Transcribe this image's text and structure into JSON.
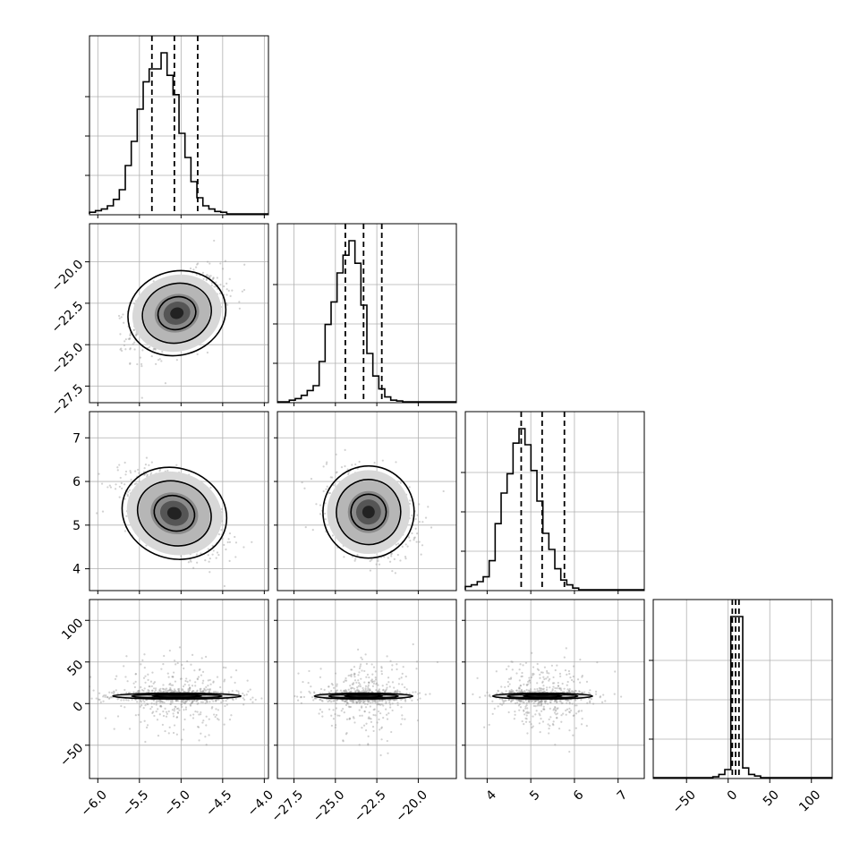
{
  "chart_data": {
    "type": "corner",
    "grid": true,
    "variables": [
      {
        "range": [
          -6.1,
          -3.95
        ],
        "ticks": [
          -6.0,
          -5.5,
          -5.0,
          -4.5,
          -4.0
        ],
        "tick_labels": [
          "−6.0",
          "−5.5",
          "−5.0",
          "−4.5",
          "−4.0"
        ],
        "quantiles": [
          -5.35,
          -5.08,
          -4.8
        ]
      },
      {
        "range": [
          -28.5,
          -17.7
        ],
        "ticks": [
          -27.5,
          -25.0,
          -22.5,
          -20.0
        ],
        "tick_labels": [
          "−27.5",
          "−25.0",
          "−22.5",
          "−20.0"
        ],
        "quantiles": [
          -24.4,
          -23.3,
          -22.2
        ]
      },
      {
        "range": [
          3.5,
          7.6
        ],
        "ticks": [
          4,
          5,
          6,
          7
        ],
        "tick_labels": [
          "4",
          "5",
          "6",
          "7"
        ],
        "quantiles": [
          4.78,
          5.26,
          5.77
        ]
      },
      {
        "range": [
          -90,
          125
        ],
        "ticks": [
          -50,
          0,
          50,
          100
        ],
        "tick_labels": [
          "−50",
          "0",
          "50",
          "100"
        ],
        "quantiles": [
          5,
          9,
          13
        ]
      }
    ],
    "marginals": [
      {
        "bin_start": -6.1,
        "bin_width": 0.0717,
        "counts": [
          0.01,
          0.02,
          0.03,
          0.05,
          0.09,
          0.15,
          0.3,
          0.45,
          0.65,
          0.82,
          0.9,
          0.9,
          1.0,
          0.86,
          0.74,
          0.5,
          0.35,
          0.2,
          0.1,
          0.05,
          0.03,
          0.015,
          0.01,
          0.0,
          0.0,
          0.0,
          0.0,
          0.0,
          0.0,
          0.0
        ]
      },
      {
        "bin_start": -28.5,
        "bin_width": 0.36,
        "counts": [
          0.0,
          0.0,
          0.01,
          0.02,
          0.04,
          0.07,
          0.1,
          0.25,
          0.48,
          0.62,
          0.8,
          0.91,
          1.0,
          0.86,
          0.6,
          0.3,
          0.16,
          0.08,
          0.03,
          0.01,
          0.005,
          0.0,
          0.0,
          0.0,
          0.0,
          0.0,
          0.0,
          0.0,
          0.0,
          0.0
        ]
      },
      {
        "bin_start": 3.5,
        "bin_width": 0.1367,
        "counts": [
          0.02,
          0.03,
          0.05,
          0.08,
          0.18,
          0.41,
          0.6,
          0.72,
          0.91,
          1.0,
          0.9,
          0.74,
          0.55,
          0.35,
          0.25,
          0.13,
          0.06,
          0.03,
          0.01,
          0.0,
          0.0,
          0.0,
          0.0,
          0.0,
          0.0,
          0.0,
          0.0,
          0.0,
          0.0,
          0.0
        ]
      },
      {
        "bin_start": -90,
        "bin_width": 7.1667,
        "counts": [
          0.0,
          0.0,
          0.0,
          0.0,
          0.0,
          0.0,
          0.0,
          0.0,
          0.0,
          0.0,
          0.005,
          0.02,
          0.05,
          1.0,
          1.0,
          0.06,
          0.02,
          0.01,
          0.0,
          0.0,
          0.0,
          0.0,
          0.0,
          0.0,
          0.0,
          0.0,
          0.0,
          0.0,
          0.0,
          0.0
        ]
      }
    ],
    "joints": [
      {
        "x": 0,
        "y": 1,
        "mean": [
          -5.05,
          -23.1
        ],
        "sd": [
          0.27,
          1.15
        ],
        "rho": 0.45
      },
      {
        "x": 0,
        "y": 2,
        "mean": [
          -5.08,
          5.27
        ],
        "sd": [
          0.29,
          0.47
        ],
        "rho": -0.55
      },
      {
        "x": 1,
        "y": 2,
        "mean": [
          -23.0,
          5.3
        ],
        "sd": [
          1.25,
          0.48
        ],
        "rho": -0.3
      },
      {
        "x": 0,
        "y": 3,
        "mean": [
          -5.05,
          9.0
        ],
        "sd": [
          0.35,
          3.5
        ],
        "rho": 0.0
      },
      {
        "x": 1,
        "y": 3,
        "mean": [
          -23.3,
          9.0
        ],
        "sd": [
          1.35,
          3.5
        ],
        "rho": 0.0
      },
      {
        "x": 2,
        "y": 3,
        "mean": [
          5.27,
          9.0
        ],
        "sd": [
          0.52,
          3.5
        ],
        "rho": 0.0
      }
    ]
  }
}
